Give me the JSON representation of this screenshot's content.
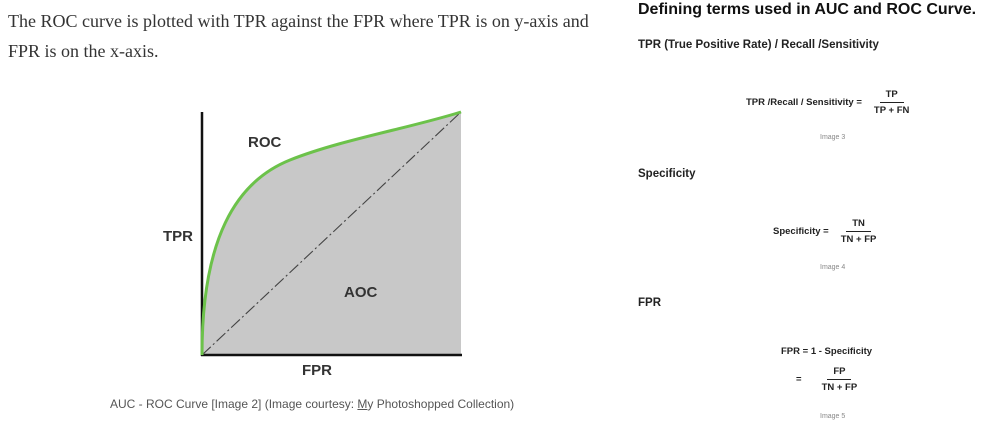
{
  "intro_text": "The ROC curve is plotted with TPR against the FPR where TPR is on y-axis and FPR is on the x-axis.",
  "figure": {
    "curve_label": "ROC",
    "area_label": "AOC",
    "y_label": "TPR",
    "x_label": "FPR",
    "curve_color": "#6cc24a",
    "fill_color": "#c8c8c8"
  },
  "caption": {
    "prefix": "AUC - ROC Curve [Image 2] (Image courtesy: ",
    "link": "M",
    "suffix": "y Photoshopped Collection)"
  },
  "right": {
    "heading": "Defining terms used in AUC and ROC Curve.",
    "tpr_title": "TPR (True Positive Rate) / Recall /Sensitivity",
    "tpr_formula": {
      "lhs": "TPR /Recall / Sensitivity =",
      "num": "TP",
      "den": "TP + FN"
    },
    "tpr_note": "Image 3",
    "spec_title": "Specificity",
    "spec_formula": {
      "lhs": "Specificity =",
      "num": "TN",
      "den": "TN + FP"
    },
    "spec_note": "Image 4",
    "fpr_title": "FPR",
    "fpr_formula_line1": "FPR = 1 - Specificity",
    "fpr_formula2": {
      "lhs": "=",
      "num": "FP",
      "den": "TN + FP"
    },
    "fpr_note": "Image 5"
  }
}
